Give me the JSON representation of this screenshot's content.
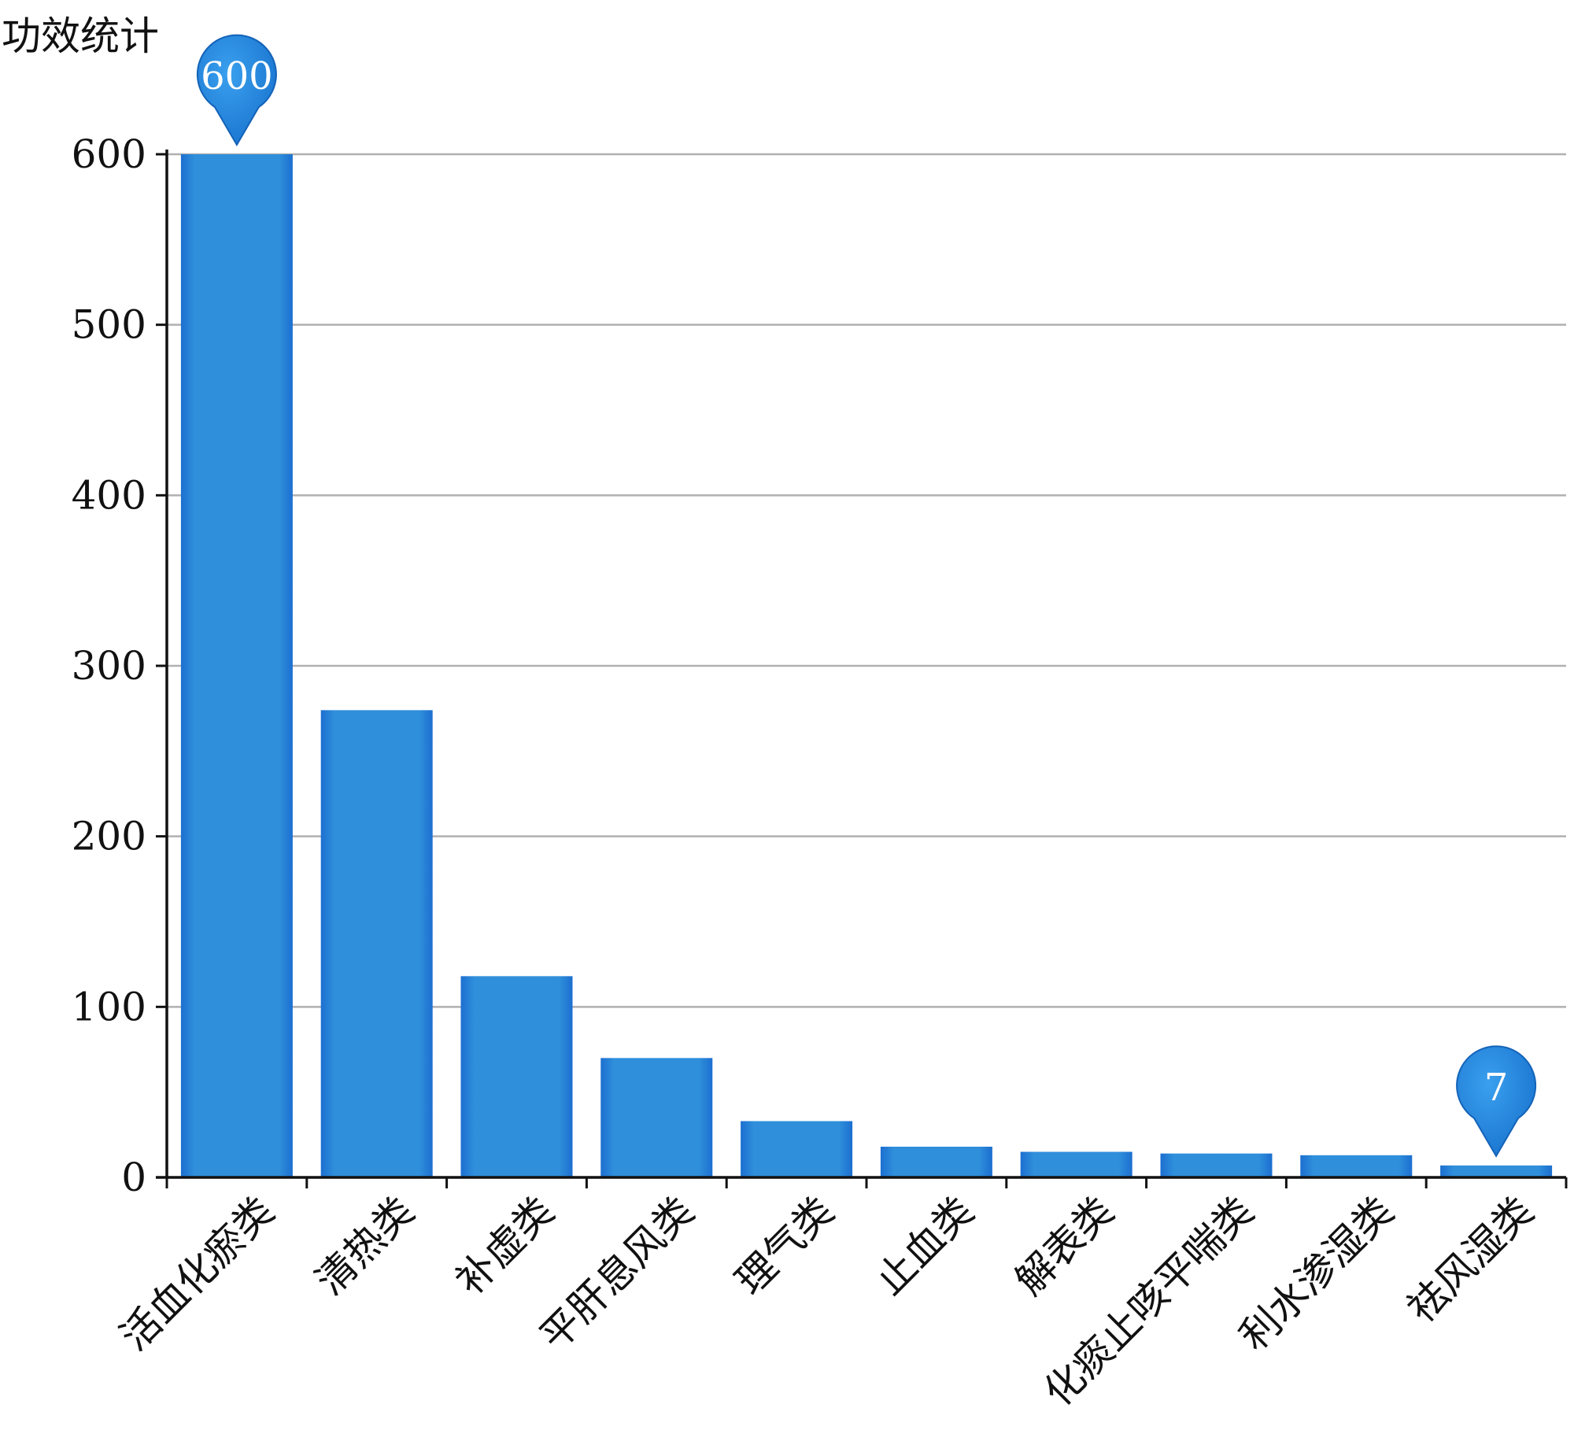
{
  "chart_data": {
    "type": "bar",
    "ylabel": "功效统计",
    "categories": [
      "活血化瘀类",
      "清热类",
      "补虚类",
      "平肝息风类",
      "理气类",
      "止血类",
      "解表类",
      "化痰止咳平喘类",
      "利水渗湿类",
      "祛风湿类"
    ],
    "values": [
      600,
      274,
      118,
      70,
      33,
      18,
      15,
      14,
      13,
      7
    ],
    "ylim": [
      0,
      600
    ],
    "yticks": [
      0,
      100,
      200,
      300,
      400,
      500,
      600
    ],
    "grid": true,
    "bar_color": "#2f8fdb",
    "marker_color": "#1a74cf",
    "markers": [
      {
        "index": 0,
        "label": "600"
      },
      {
        "index": 9,
        "label": "7"
      }
    ]
  }
}
